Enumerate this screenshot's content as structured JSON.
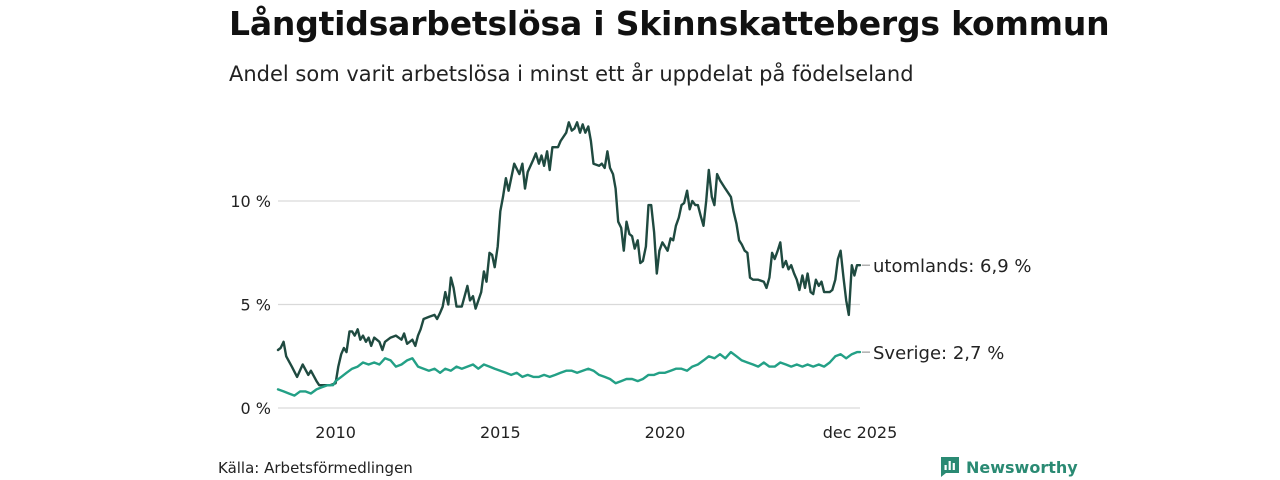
{
  "title": "Långtidsarbetslösa i Skinnskattebergs kommun",
  "subtitle": "Andel som varit arbetslösa i minst ett år uppdelat på födelseland",
  "source": "Källa: Arbetsförmedlingen",
  "brand": {
    "name": "Newsworthy",
    "icon": "newsworthy-logo-icon"
  },
  "colors": {
    "utomlands": "#1f4a40",
    "sverige": "#23a086",
    "grid": "#d9d9d9",
    "brand": "#2a8a73"
  },
  "chart_data": {
    "type": "line",
    "title": "Långtidsarbetslösa i Skinnskattebergs kommun",
    "xlabel": "",
    "ylabel": "",
    "ylim": [
      0,
      14
    ],
    "xlim": [
      2008.25,
      2025.92
    ],
    "y_ticks": [
      {
        "value": 0,
        "label": "0 %"
      },
      {
        "value": 5,
        "label": "5 %"
      },
      {
        "value": 10,
        "label": "10 %"
      }
    ],
    "x_ticks": [
      {
        "value": 2010,
        "label": "2010"
      },
      {
        "value": 2015,
        "label": "2015"
      },
      {
        "value": 2020,
        "label": "2020"
      },
      {
        "value": 2025.92,
        "label": "dec 2025"
      }
    ],
    "grid": true,
    "series": [
      {
        "name": "utomlands",
        "end_label": "utomlands: 6,9 %",
        "color": "#1f4a40",
        "points": [
          [
            2008.25,
            2.8
          ],
          [
            2008.33,
            2.9
          ],
          [
            2008.42,
            3.2
          ],
          [
            2008.5,
            2.5
          ],
          [
            2008.67,
            2.0
          ],
          [
            2008.83,
            1.5
          ],
          [
            2009.0,
            2.1
          ],
          [
            2009.17,
            1.6
          ],
          [
            2009.25,
            1.8
          ],
          [
            2009.42,
            1.3
          ],
          [
            2009.5,
            1.1
          ],
          [
            2009.67,
            1.1
          ],
          [
            2009.83,
            1.1
          ],
          [
            2010.0,
            1.2
          ],
          [
            2010.08,
            2.0
          ],
          [
            2010.17,
            2.6
          ],
          [
            2010.25,
            2.9
          ],
          [
            2010.33,
            2.7
          ],
          [
            2010.42,
            3.7
          ],
          [
            2010.5,
            3.7
          ],
          [
            2010.58,
            3.5
          ],
          [
            2010.67,
            3.8
          ],
          [
            2010.75,
            3.3
          ],
          [
            2010.83,
            3.5
          ],
          [
            2010.92,
            3.2
          ],
          [
            2011.0,
            3.4
          ],
          [
            2011.08,
            3.0
          ],
          [
            2011.17,
            3.4
          ],
          [
            2011.25,
            3.3
          ],
          [
            2011.33,
            3.2
          ],
          [
            2011.42,
            2.8
          ],
          [
            2011.5,
            3.2
          ],
          [
            2011.67,
            3.4
          ],
          [
            2011.83,
            3.5
          ],
          [
            2012.0,
            3.3
          ],
          [
            2012.08,
            3.6
          ],
          [
            2012.17,
            3.1
          ],
          [
            2012.25,
            3.2
          ],
          [
            2012.33,
            3.3
          ],
          [
            2012.42,
            3.0
          ],
          [
            2012.5,
            3.5
          ],
          [
            2012.58,
            3.8
          ],
          [
            2012.67,
            4.3
          ],
          [
            2012.83,
            4.4
          ],
          [
            2013.0,
            4.5
          ],
          [
            2013.08,
            4.3
          ],
          [
            2013.17,
            4.6
          ],
          [
            2013.25,
            4.9
          ],
          [
            2013.33,
            5.6
          ],
          [
            2013.42,
            5.0
          ],
          [
            2013.5,
            6.3
          ],
          [
            2013.58,
            5.8
          ],
          [
            2013.67,
            4.9
          ],
          [
            2013.83,
            4.9
          ],
          [
            2014.0,
            5.9
          ],
          [
            2014.08,
            5.2
          ],
          [
            2014.17,
            5.4
          ],
          [
            2014.25,
            4.8
          ],
          [
            2014.42,
            5.6
          ],
          [
            2014.5,
            6.6
          ],
          [
            2014.58,
            6.1
          ],
          [
            2014.67,
            7.5
          ],
          [
            2014.75,
            7.4
          ],
          [
            2014.83,
            6.8
          ],
          [
            2014.92,
            7.8
          ],
          [
            2015.0,
            9.5
          ],
          [
            2015.08,
            10.2
          ],
          [
            2015.17,
            11.1
          ],
          [
            2015.25,
            10.5
          ],
          [
            2015.42,
            11.8
          ],
          [
            2015.58,
            11.3
          ],
          [
            2015.67,
            11.8
          ],
          [
            2015.75,
            10.6
          ],
          [
            2015.83,
            11.4
          ],
          [
            2016.0,
            12.0
          ],
          [
            2016.08,
            12.3
          ],
          [
            2016.17,
            11.8
          ],
          [
            2016.25,
            12.2
          ],
          [
            2016.33,
            11.7
          ],
          [
            2016.42,
            12.4
          ],
          [
            2016.5,
            11.5
          ],
          [
            2016.58,
            12.6
          ],
          [
            2016.75,
            12.6
          ],
          [
            2016.83,
            12.9
          ],
          [
            2017.0,
            13.3
          ],
          [
            2017.08,
            13.8
          ],
          [
            2017.17,
            13.4
          ],
          [
            2017.25,
            13.5
          ],
          [
            2017.33,
            13.8
          ],
          [
            2017.42,
            13.3
          ],
          [
            2017.5,
            13.7
          ],
          [
            2017.58,
            13.3
          ],
          [
            2017.67,
            13.6
          ],
          [
            2017.75,
            12.9
          ],
          [
            2017.83,
            11.8
          ],
          [
            2018.0,
            11.7
          ],
          [
            2018.08,
            11.8
          ],
          [
            2018.17,
            11.6
          ],
          [
            2018.25,
            12.4
          ],
          [
            2018.33,
            11.6
          ],
          [
            2018.42,
            11.3
          ],
          [
            2018.5,
            10.6
          ],
          [
            2018.58,
            9.0
          ],
          [
            2018.67,
            8.7
          ],
          [
            2018.75,
            7.6
          ],
          [
            2018.83,
            9.0
          ],
          [
            2018.92,
            8.4
          ],
          [
            2019.0,
            8.3
          ],
          [
            2019.08,
            7.7
          ],
          [
            2019.17,
            8.1
          ],
          [
            2019.25,
            7.0
          ],
          [
            2019.33,
            7.1
          ],
          [
            2019.42,
            7.8
          ],
          [
            2019.5,
            9.8
          ],
          [
            2019.58,
            9.8
          ],
          [
            2019.67,
            8.5
          ],
          [
            2019.75,
            6.5
          ],
          [
            2019.83,
            7.6
          ],
          [
            2019.92,
            8.0
          ],
          [
            2020.0,
            7.8
          ],
          [
            2020.08,
            7.6
          ],
          [
            2020.17,
            8.2
          ],
          [
            2020.25,
            8.1
          ],
          [
            2020.33,
            8.8
          ],
          [
            2020.42,
            9.2
          ],
          [
            2020.5,
            9.8
          ],
          [
            2020.58,
            9.9
          ],
          [
            2020.67,
            10.5
          ],
          [
            2020.75,
            9.6
          ],
          [
            2020.83,
            10.0
          ],
          [
            2020.92,
            9.8
          ],
          [
            2021.0,
            9.8
          ],
          [
            2021.08,
            9.3
          ],
          [
            2021.17,
            8.8
          ],
          [
            2021.25,
            10.0
          ],
          [
            2021.33,
            11.5
          ],
          [
            2021.42,
            10.2
          ],
          [
            2021.5,
            9.8
          ],
          [
            2021.58,
            11.3
          ],
          [
            2021.67,
            11.0
          ],
          [
            2021.83,
            10.6
          ],
          [
            2022.0,
            10.2
          ],
          [
            2022.08,
            9.5
          ],
          [
            2022.17,
            8.9
          ],
          [
            2022.25,
            8.1
          ],
          [
            2022.33,
            7.9
          ],
          [
            2022.42,
            7.6
          ],
          [
            2022.5,
            7.5
          ],
          [
            2022.58,
            6.3
          ],
          [
            2022.67,
            6.2
          ],
          [
            2022.83,
            6.2
          ],
          [
            2023.0,
            6.1
          ],
          [
            2023.08,
            5.8
          ],
          [
            2023.17,
            6.3
          ],
          [
            2023.25,
            7.5
          ],
          [
            2023.33,
            7.2
          ],
          [
            2023.42,
            7.6
          ],
          [
            2023.5,
            8.0
          ],
          [
            2023.58,
            6.8
          ],
          [
            2023.67,
            7.1
          ],
          [
            2023.75,
            6.7
          ],
          [
            2023.83,
            6.9
          ],
          [
            2023.92,
            6.5
          ],
          [
            2024.0,
            6.2
          ],
          [
            2024.08,
            5.7
          ],
          [
            2024.17,
            6.4
          ],
          [
            2024.25,
            5.8
          ],
          [
            2024.33,
            6.5
          ],
          [
            2024.42,
            5.6
          ],
          [
            2024.5,
            5.5
          ],
          [
            2024.58,
            6.2
          ],
          [
            2024.67,
            5.9
          ],
          [
            2024.75,
            6.1
          ],
          [
            2024.83,
            5.6
          ],
          [
            2024.92,
            5.6
          ],
          [
            2025.0,
            5.6
          ],
          [
            2025.08,
            5.7
          ],
          [
            2025.17,
            6.2
          ],
          [
            2025.25,
            7.2
          ],
          [
            2025.33,
            7.6
          ],
          [
            2025.42,
            6.3
          ],
          [
            2025.5,
            5.2
          ],
          [
            2025.58,
            4.5
          ],
          [
            2025.67,
            6.9
          ],
          [
            2025.75,
            6.4
          ],
          [
            2025.83,
            6.9
          ],
          [
            2025.92,
            6.9
          ]
        ]
      },
      {
        "name": "Sverige",
        "end_label": "Sverige: 2,7 %",
        "color": "#23a086",
        "points": [
          [
            2008.25,
            0.9
          ],
          [
            2008.42,
            0.8
          ],
          [
            2008.58,
            0.7
          ],
          [
            2008.75,
            0.6
          ],
          [
            2008.92,
            0.8
          ],
          [
            2009.08,
            0.8
          ],
          [
            2009.25,
            0.7
          ],
          [
            2009.42,
            0.9
          ],
          [
            2009.58,
            1.0
          ],
          [
            2009.75,
            1.1
          ],
          [
            2009.92,
            1.1
          ],
          [
            2010.0,
            1.3
          ],
          [
            2010.17,
            1.5
          ],
          [
            2010.33,
            1.7
          ],
          [
            2010.5,
            1.9
          ],
          [
            2010.67,
            2.0
          ],
          [
            2010.83,
            2.2
          ],
          [
            2011.0,
            2.1
          ],
          [
            2011.17,
            2.2
          ],
          [
            2011.33,
            2.1
          ],
          [
            2011.5,
            2.4
          ],
          [
            2011.67,
            2.3
          ],
          [
            2011.83,
            2.0
          ],
          [
            2012.0,
            2.1
          ],
          [
            2012.17,
            2.3
          ],
          [
            2012.33,
            2.4
          ],
          [
            2012.5,
            2.0
          ],
          [
            2012.67,
            1.9
          ],
          [
            2012.83,
            1.8
          ],
          [
            2013.0,
            1.9
          ],
          [
            2013.17,
            1.7
          ],
          [
            2013.33,
            1.9
          ],
          [
            2013.5,
            1.8
          ],
          [
            2013.67,
            2.0
          ],
          [
            2013.83,
            1.9
          ],
          [
            2014.0,
            2.0
          ],
          [
            2014.17,
            2.1
          ],
          [
            2014.33,
            1.9
          ],
          [
            2014.5,
            2.1
          ],
          [
            2014.67,
            2.0
          ],
          [
            2014.83,
            1.9
          ],
          [
            2015.0,
            1.8
          ],
          [
            2015.17,
            1.7
          ],
          [
            2015.33,
            1.6
          ],
          [
            2015.5,
            1.7
          ],
          [
            2015.67,
            1.5
          ],
          [
            2015.83,
            1.6
          ],
          [
            2016.0,
            1.5
          ],
          [
            2016.17,
            1.5
          ],
          [
            2016.33,
            1.6
          ],
          [
            2016.5,
            1.5
          ],
          [
            2016.67,
            1.6
          ],
          [
            2016.83,
            1.7
          ],
          [
            2017.0,
            1.8
          ],
          [
            2017.17,
            1.8
          ],
          [
            2017.33,
            1.7
          ],
          [
            2017.5,
            1.8
          ],
          [
            2017.67,
            1.9
          ],
          [
            2017.83,
            1.8
          ],
          [
            2018.0,
            1.6
          ],
          [
            2018.17,
            1.5
          ],
          [
            2018.33,
            1.4
          ],
          [
            2018.5,
            1.2
          ],
          [
            2018.67,
            1.3
          ],
          [
            2018.83,
            1.4
          ],
          [
            2019.0,
            1.4
          ],
          [
            2019.17,
            1.3
          ],
          [
            2019.33,
            1.4
          ],
          [
            2019.5,
            1.6
          ],
          [
            2019.67,
            1.6
          ],
          [
            2019.83,
            1.7
          ],
          [
            2020.0,
            1.7
          ],
          [
            2020.17,
            1.8
          ],
          [
            2020.33,
            1.9
          ],
          [
            2020.5,
            1.9
          ],
          [
            2020.67,
            1.8
          ],
          [
            2020.83,
            2.0
          ],
          [
            2021.0,
            2.1
          ],
          [
            2021.17,
            2.3
          ],
          [
            2021.33,
            2.5
          ],
          [
            2021.5,
            2.4
          ],
          [
            2021.67,
            2.6
          ],
          [
            2021.83,
            2.4
          ],
          [
            2022.0,
            2.7
          ],
          [
            2022.17,
            2.5
          ],
          [
            2022.33,
            2.3
          ],
          [
            2022.5,
            2.2
          ],
          [
            2022.67,
            2.1
          ],
          [
            2022.83,
            2.0
          ],
          [
            2023.0,
            2.2
          ],
          [
            2023.17,
            2.0
          ],
          [
            2023.33,
            2.0
          ],
          [
            2023.5,
            2.2
          ],
          [
            2023.67,
            2.1
          ],
          [
            2023.83,
            2.0
          ],
          [
            2024.0,
            2.1
          ],
          [
            2024.17,
            2.0
          ],
          [
            2024.33,
            2.1
          ],
          [
            2024.5,
            2.0
          ],
          [
            2024.67,
            2.1
          ],
          [
            2024.83,
            2.0
          ],
          [
            2025.0,
            2.2
          ],
          [
            2025.17,
            2.5
          ],
          [
            2025.33,
            2.6
          ],
          [
            2025.5,
            2.4
          ],
          [
            2025.67,
            2.6
          ],
          [
            2025.83,
            2.7
          ],
          [
            2025.92,
            2.7
          ]
        ]
      }
    ]
  }
}
